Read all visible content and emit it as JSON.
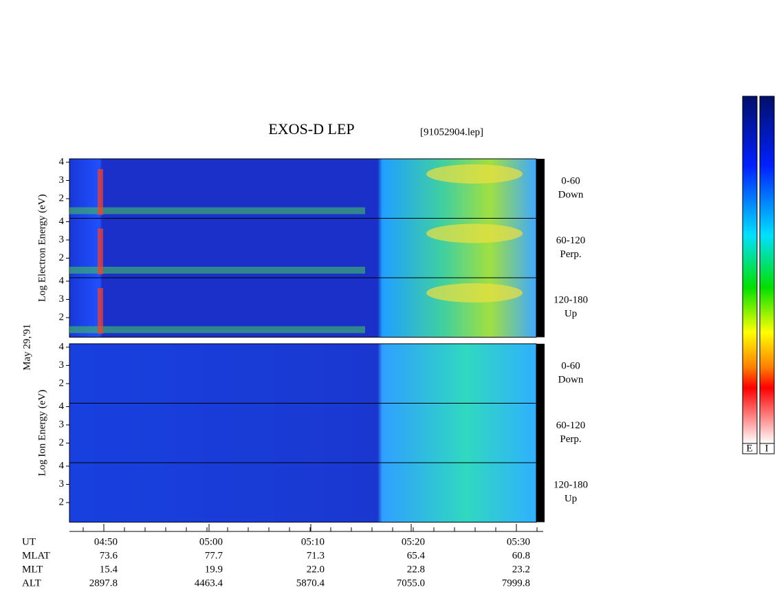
{
  "title": "EXOS-D LEP",
  "file": "[91052904.lep]",
  "date_label": "May 29,'91",
  "groups": [
    {
      "y_label": "Log Electron Energy (eV)",
      "panels": [
        {
          "angle": "0-60",
          "dir": "Down"
        },
        {
          "angle": "60-120",
          "dir": "Perp."
        },
        {
          "angle": "120-180",
          "dir": "Up"
        }
      ]
    },
    {
      "y_label": "Log Ion Energy (eV)",
      "panels": [
        {
          "angle": "0-60",
          "dir": "Down"
        },
        {
          "angle": "60-120",
          "dir": "Perp."
        },
        {
          "angle": "120-180",
          "dir": "Up"
        }
      ]
    }
  ],
  "energy_ticks": [
    "4",
    "3",
    "2"
  ],
  "time_axis": {
    "rows": [
      [
        "UT",
        "04:50",
        "05:00",
        "05:10",
        "05:20",
        "05:30"
      ],
      [
        "MLAT",
        "73.6",
        "77.7",
        "71.3",
        "65.4",
        "60.8"
      ],
      [
        "MLT",
        "15.4",
        "19.9",
        "22.0",
        "22.8",
        "23.2"
      ],
      [
        "ALT",
        "2897.8",
        "4463.4",
        "5870.4",
        "7055.0",
        "7999.8"
      ]
    ]
  },
  "colorbar_labels": [
    "E",
    "I"
  ]
}
